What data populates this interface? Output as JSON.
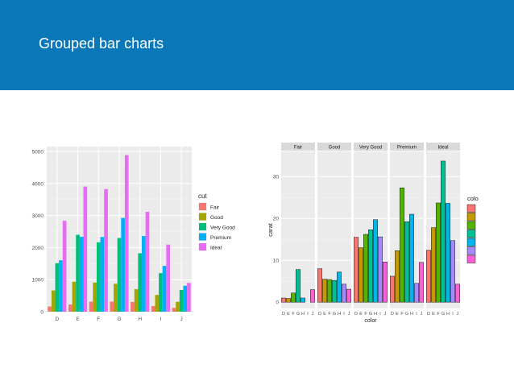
{
  "slide": {
    "title": "Grouped bar charts"
  },
  "colors": {
    "header": "#0a77b8",
    "cut_palette": [
      "#F8766D",
      "#A3A500",
      "#00BF7D",
      "#00B0F6",
      "#E76BF3"
    ],
    "color_palette": [
      "#F8766D",
      "#C49A00",
      "#53B400",
      "#00C094",
      "#00B6EB",
      "#A58AFF",
      "#FB61D7"
    ]
  },
  "chart_data": [
    {
      "type": "bar",
      "categories": [
        "D",
        "E",
        "F",
        "G",
        "H",
        "I",
        "J"
      ],
      "series": [
        {
          "name": "Fair",
          "values": [
            163,
            224,
            312,
            314,
            303,
            175,
            119
          ]
        },
        {
          "name": "Good",
          "values": [
            662,
            933,
            909,
            871,
            702,
            522,
            307
          ]
        },
        {
          "name": "Very Good",
          "values": [
            1513,
            2400,
            2164,
            2299,
            1824,
            1204,
            678
          ]
        },
        {
          "name": "Premium",
          "values": [
            1603,
            2337,
            2331,
            2924,
            2360,
            1428,
            808
          ]
        },
        {
          "name": "Ideal",
          "values": [
            2834,
            3903,
            3826,
            4884,
            3115,
            2093,
            896
          ]
        }
      ],
      "title": "",
      "xlabel": "",
      "ylabel": "",
      "yticks": [
        0,
        1000,
        2000,
        3000,
        4000,
        5000
      ],
      "ylim": [
        0,
        5150
      ],
      "legend": {
        "title": "cut",
        "placement": "right"
      },
      "grid": true
    },
    {
      "type": "bar",
      "facets": [
        "Fair",
        "Good",
        "Very Good",
        "Premium",
        "Ideal"
      ],
      "categories": [
        "D",
        "E",
        "F",
        "G",
        "H",
        "I",
        "J"
      ],
      "values": [
        [
          1.0,
          0.9,
          2.2,
          7.8,
          1.0,
          0.0,
          3.0
        ],
        [
          8.0,
          5.5,
          5.4,
          5.2,
          7.2,
          4.3,
          3.1
        ],
        [
          15.5,
          13.0,
          16.2,
          17.3,
          19.7,
          15.6,
          9.6
        ],
        [
          6.2,
          12.3,
          27.3,
          19.2,
          21.0,
          4.5,
          9.5
        ],
        [
          12.4,
          17.8,
          23.7,
          33.7,
          23.6,
          14.7,
          4.3
        ]
      ],
      "xlabel": "color",
      "ylabel": "carat",
      "yticks": [
        0,
        10,
        20,
        30
      ],
      "ylim": [
        -1.5,
        36
      ],
      "legend": {
        "title": "colo",
        "placement": "right"
      },
      "grid": true
    }
  ]
}
